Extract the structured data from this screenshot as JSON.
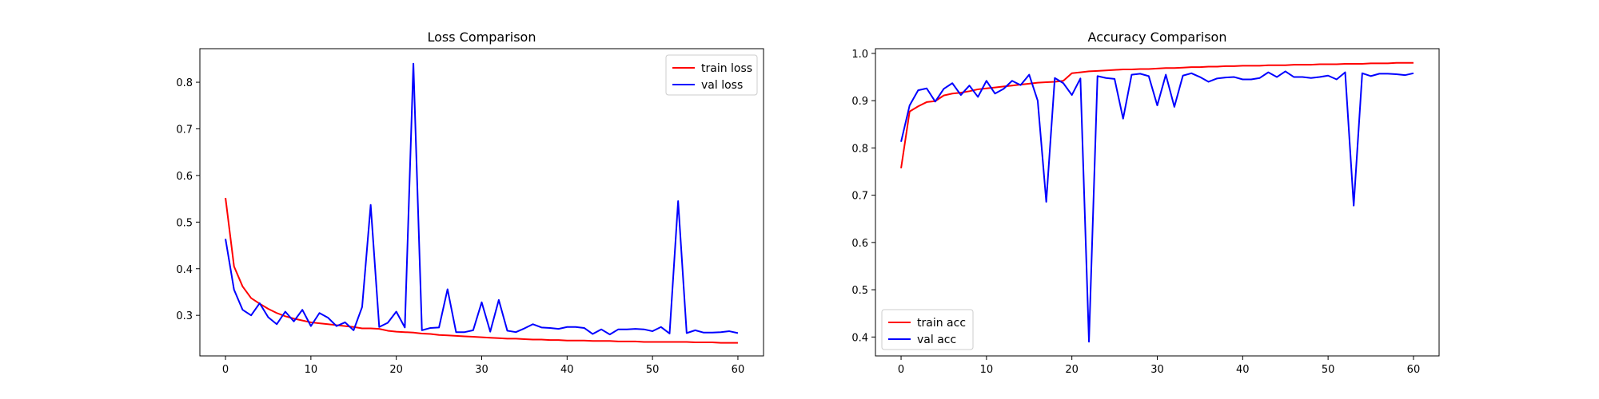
{
  "chart_data": [
    {
      "type": "line",
      "title": "Loss Comparison",
      "xlabel": "",
      "ylabel": "",
      "xlim": [
        -3,
        63
      ],
      "ylim": [
        0.213,
        0.872
      ],
      "xticks": [
        0,
        10,
        20,
        30,
        40,
        50,
        60
      ],
      "yticks": [
        0.3,
        0.4,
        0.5,
        0.6,
        0.7,
        0.8
      ],
      "ytick_labels": [
        "0.3",
        "0.4",
        "0.5",
        "0.6",
        "0.7",
        "0.8"
      ],
      "grid": false,
      "legend_position": "top-right",
      "series": [
        {
          "name": "train loss",
          "color": "#ff0000",
          "values": [
            0.552,
            0.405,
            0.362,
            0.337,
            0.325,
            0.314,
            0.305,
            0.298,
            0.293,
            0.289,
            0.285,
            0.283,
            0.281,
            0.279,
            0.277,
            0.275,
            0.272,
            0.272,
            0.271,
            0.267,
            0.265,
            0.264,
            0.263,
            0.261,
            0.26,
            0.258,
            0.257,
            0.256,
            0.255,
            0.254,
            0.253,
            0.252,
            0.251,
            0.25,
            0.25,
            0.249,
            0.248,
            0.248,
            0.247,
            0.247,
            0.246,
            0.246,
            0.246,
            0.245,
            0.245,
            0.245,
            0.244,
            0.244,
            0.244,
            0.243,
            0.243,
            0.243,
            0.243,
            0.243,
            0.243,
            0.242,
            0.242,
            0.242,
            0.241,
            0.241,
            0.241
          ]
        },
        {
          "name": "val loss",
          "color": "#0000ff",
          "values": [
            0.464,
            0.355,
            0.312,
            0.3,
            0.326,
            0.296,
            0.281,
            0.308,
            0.287,
            0.312,
            0.277,
            0.305,
            0.295,
            0.277,
            0.285,
            0.268,
            0.318,
            0.537,
            0.275,
            0.284,
            0.308,
            0.274,
            0.84,
            0.268,
            0.273,
            0.274,
            0.356,
            0.264,
            0.264,
            0.268,
            0.328,
            0.265,
            0.333,
            0.267,
            0.264,
            0.272,
            0.281,
            0.274,
            0.273,
            0.271,
            0.275,
            0.275,
            0.273,
            0.26,
            0.27,
            0.259,
            0.27,
            0.27,
            0.271,
            0.27,
            0.266,
            0.275,
            0.261,
            0.545,
            0.262,
            0.268,
            0.263,
            0.263,
            0.264,
            0.266,
            0.262
          ]
        }
      ]
    },
    {
      "type": "line",
      "title": "Accuracy Comparison",
      "xlabel": "",
      "ylabel": "",
      "xlim": [
        -3,
        63
      ],
      "ylim": [
        0.36,
        1.01
      ],
      "xticks": [
        0,
        10,
        20,
        30,
        40,
        50,
        60
      ],
      "yticks": [
        0.4,
        0.5,
        0.6,
        0.7,
        0.8,
        0.9,
        1.0
      ],
      "ytick_labels": [
        "0.4",
        "0.5",
        "0.6",
        "0.7",
        "0.8",
        "0.9",
        "1.0"
      ],
      "grid": false,
      "legend_position": "bottom-left",
      "series": [
        {
          "name": "train acc",
          "color": "#ff0000",
          "values": [
            0.757,
            0.877,
            0.888,
            0.897,
            0.899,
            0.911,
            0.915,
            0.917,
            0.92,
            0.924,
            0.926,
            0.928,
            0.93,
            0.932,
            0.934,
            0.936,
            0.938,
            0.939,
            0.94,
            0.942,
            0.958,
            0.96,
            0.962,
            0.963,
            0.964,
            0.965,
            0.966,
            0.966,
            0.967,
            0.967,
            0.968,
            0.969,
            0.969,
            0.97,
            0.971,
            0.971,
            0.972,
            0.972,
            0.973,
            0.973,
            0.974,
            0.974,
            0.974,
            0.975,
            0.975,
            0.975,
            0.976,
            0.976,
            0.976,
            0.977,
            0.977,
            0.977,
            0.978,
            0.978,
            0.978,
            0.979,
            0.979,
            0.979,
            0.98,
            0.98,
            0.98
          ]
        },
        {
          "name": "val acc",
          "color": "#0000ff",
          "values": [
            0.813,
            0.89,
            0.922,
            0.926,
            0.898,
            0.925,
            0.937,
            0.912,
            0.932,
            0.908,
            0.942,
            0.915,
            0.925,
            0.942,
            0.933,
            0.955,
            0.9,
            0.686,
            0.948,
            0.937,
            0.912,
            0.947,
            0.39,
            0.952,
            0.948,
            0.946,
            0.862,
            0.955,
            0.957,
            0.952,
            0.89,
            0.955,
            0.887,
            0.953,
            0.958,
            0.95,
            0.94,
            0.947,
            0.949,
            0.95,
            0.945,
            0.945,
            0.948,
            0.96,
            0.95,
            0.962,
            0.95,
            0.95,
            0.948,
            0.95,
            0.953,
            0.945,
            0.96,
            0.678,
            0.958,
            0.952,
            0.957,
            0.957,
            0.956,
            0.954,
            0.958
          ]
        }
      ]
    }
  ]
}
